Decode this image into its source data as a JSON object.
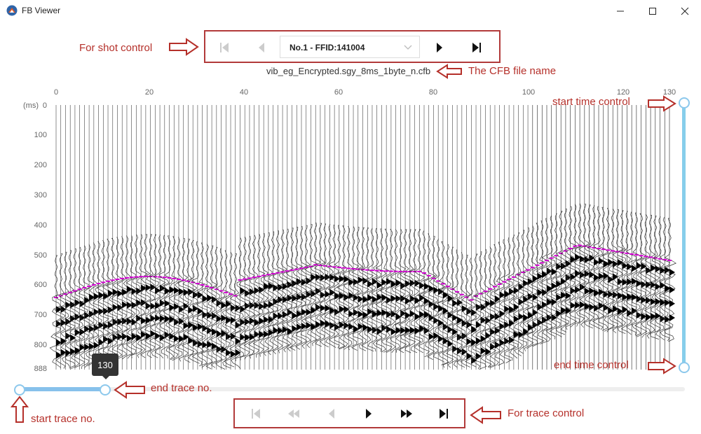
{
  "window": {
    "title": "FB Viewer"
  },
  "shot_nav": {
    "selected": "No.1 - FFID:141004"
  },
  "file_name": "vib_eg_Encrypted.sgy_8ms_1byte_n.cfb",
  "plot": {
    "x_ticks": [
      "0",
      "20",
      "40",
      "60",
      "80",
      "100",
      "120",
      "130"
    ],
    "y_ticks": [
      "0",
      "100",
      "200",
      "300",
      "400",
      "500",
      "600",
      "700",
      "800",
      "888"
    ],
    "y_unit": "(ms)"
  },
  "trace_slider": {
    "tooltip": "130",
    "start": 0,
    "end": 130
  },
  "annotations": {
    "shot_control": "For shot control",
    "cfb_name": "The CFB file name",
    "start_time": "start time control",
    "end_time": "end time control",
    "end_trace": "end trace no.",
    "start_trace": "start trace no.",
    "trace_control": "For trace control"
  },
  "colors": {
    "annotation": "#b5302a",
    "slider": "#87ceeb",
    "pick": "#d000d0"
  }
}
